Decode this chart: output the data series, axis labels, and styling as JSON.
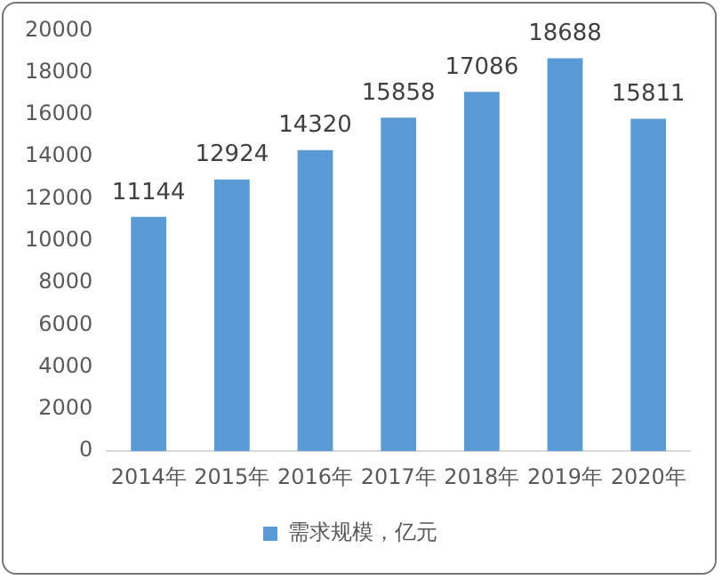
{
  "chart_data": {
    "type": "bar",
    "categories": [
      "2014年",
      "2015年",
      "2016年",
      "2017年",
      "2018年",
      "2019年",
      "2020年"
    ],
    "series": [
      {
        "name": "需求规模，亿元",
        "color": "#5b9bd5",
        "values": [
          11144,
          12924,
          14320,
          15858,
          17086,
          18688,
          15811
        ]
      }
    ],
    "ylim": [
      0,
      20000
    ],
    "yticks": [
      0,
      2000,
      4000,
      6000,
      8000,
      10000,
      12000,
      14000,
      16000,
      18000,
      20000
    ],
    "grid": false,
    "legend": "bottom",
    "data_labels": true
  }
}
